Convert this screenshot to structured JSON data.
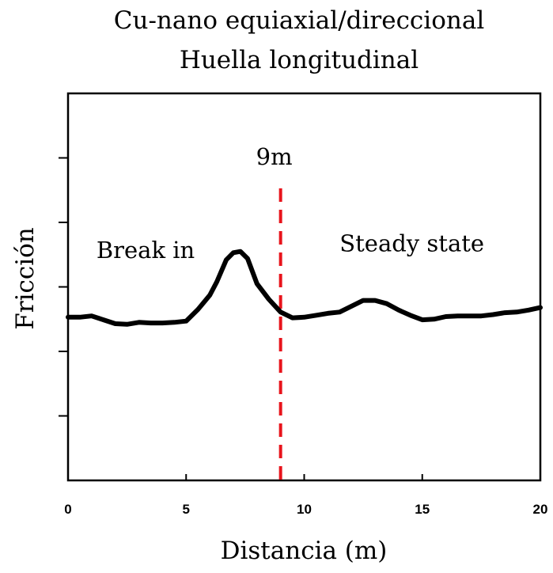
{
  "chart_data": {
    "type": "line",
    "title": "Cu-nano equiaxial/direccional",
    "subtitle": "Huella longitudinal",
    "xlabel": "Distancia (m)",
    "ylabel": "Fricción",
    "xlim": [
      0,
      20
    ],
    "x_ticks": [
      0,
      5,
      10,
      15,
      20
    ],
    "x_tick_labels": [
      "0",
      "5",
      "10",
      "15",
      "20"
    ],
    "ylim": [
      0,
      6
    ],
    "y_ticks": [
      1,
      2,
      3,
      4,
      5
    ],
    "y_tick_labels": [
      "",
      "",
      "",
      "",
      ""
    ],
    "grid": false,
    "legend": "none",
    "series": [
      {
        "color": "#000000",
        "x": [
          0,
          0.5,
          1,
          1.5,
          2,
          2.5,
          3,
          3.5,
          4,
          4.5,
          5,
          5.5,
          6,
          6.3,
          6.7,
          7,
          7.3,
          7.6,
          8,
          8.5,
          9,
          9.5,
          10,
          10.5,
          11,
          11.5,
          12,
          12.5,
          13,
          13.5,
          14,
          14.5,
          15,
          15.5,
          16,
          16.5,
          17,
          17.5,
          18,
          18.5,
          19,
          19.5,
          20
        ],
        "y": [
          2.53,
          2.53,
          2.55,
          2.49,
          2.43,
          2.42,
          2.45,
          2.44,
          2.44,
          2.45,
          2.47,
          2.65,
          2.87,
          3.08,
          3.42,
          3.53,
          3.55,
          3.44,
          3.05,
          2.81,
          2.61,
          2.52,
          2.53,
          2.56,
          2.59,
          2.61,
          2.7,
          2.79,
          2.79,
          2.74,
          2.64,
          2.56,
          2.49,
          2.5,
          2.54,
          2.55,
          2.55,
          2.55,
          2.57,
          2.6,
          2.61,
          2.64,
          2.68
        ]
      }
    ],
    "vertical_lines": [
      {
        "x": 9,
        "label": "9m",
        "color": "#e8141c",
        "style": "dashed"
      }
    ],
    "annotations": [
      {
        "text": "Break in",
        "x": 1.2,
        "y": 3.45
      },
      {
        "text": "Steady state",
        "x": 11.5,
        "y": 3.55
      }
    ]
  }
}
